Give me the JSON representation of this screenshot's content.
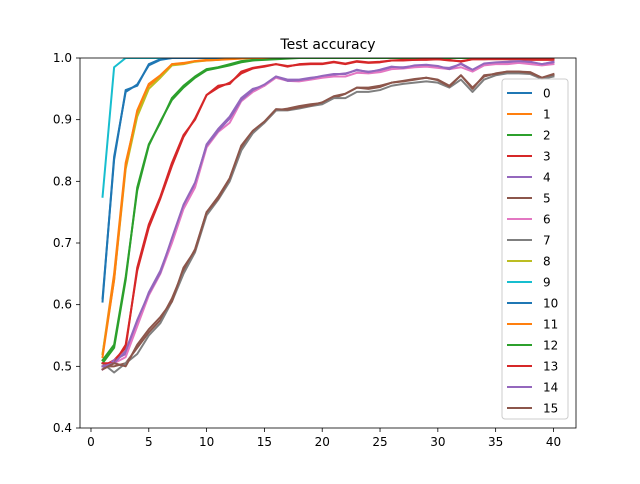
{
  "chart_data": {
    "type": "line",
    "title": "Test accuracy",
    "xlabel": "",
    "ylabel": "",
    "xlim": [
      -0.95,
      41.95
    ],
    "ylim": [
      0.4,
      1.0
    ],
    "xticks": [
      0,
      5,
      10,
      15,
      20,
      25,
      30,
      35,
      40
    ],
    "xtick_labels": [
      "0",
      "5",
      "10",
      "15",
      "20",
      "25",
      "30",
      "35",
      "40"
    ],
    "yticks": [
      0.4,
      0.5,
      0.6,
      0.7,
      0.8,
      0.9,
      1.0
    ],
    "ytick_labels": [
      "0.4",
      "0.5",
      "0.6",
      "0.7",
      "0.8",
      "0.9",
      "1.0"
    ],
    "grid": false,
    "legend_position": "right",
    "x": [
      1,
      2,
      3,
      4,
      5,
      6,
      7,
      8,
      9,
      10,
      11,
      12,
      13,
      14,
      15,
      16,
      17,
      18,
      19,
      20,
      21,
      22,
      23,
      24,
      25,
      26,
      27,
      28,
      29,
      30,
      31,
      32,
      33,
      34,
      35,
      36,
      37,
      38,
      39,
      40
    ],
    "series": [
      {
        "name": "0",
        "color": "#1f77b4",
        "values": [
          0.61,
          0.835,
          0.948,
          0.955,
          0.99,
          0.998,
          1.0,
          1.0,
          1.0,
          1.0,
          1.0,
          1.0,
          1.0,
          1.0,
          1.0,
          1.0,
          1.0,
          1.0,
          1.0,
          1.0,
          1.0,
          1.0,
          1.0,
          1.0,
          1.0,
          1.0,
          1.0,
          1.0,
          1.0,
          1.0,
          1.0,
          1.0,
          1.0,
          1.0,
          1.0,
          1.0,
          1.0,
          1.0,
          1.0,
          1.0
        ]
      },
      {
        "name": "1",
        "color": "#ff7f0e",
        "values": [
          0.52,
          0.65,
          0.83,
          0.91,
          0.955,
          0.97,
          0.99,
          0.992,
          0.995,
          0.997,
          0.998,
          0.999,
          1.0,
          1.0,
          1.0,
          1.0,
          1.0,
          1.0,
          1.0,
          1.0,
          1.0,
          1.0,
          1.0,
          1.0,
          1.0,
          1.0,
          1.0,
          1.0,
          1.0,
          1.0,
          1.0,
          1.0,
          1.0,
          1.0,
          1.0,
          1.0,
          1.0,
          1.0,
          1.0,
          1.0
        ]
      },
      {
        "name": "2",
        "color": "#2ca02c",
        "values": [
          0.505,
          0.53,
          0.64,
          0.79,
          0.86,
          0.895,
          0.935,
          0.955,
          0.97,
          0.982,
          0.985,
          0.99,
          0.995,
          0.997,
          0.998,
          0.999,
          1.0,
          1.0,
          1.0,
          1.0,
          1.0,
          1.0,
          1.0,
          1.0,
          1.0,
          1.0,
          1.0,
          1.0,
          1.0,
          1.0,
          1.0,
          1.0,
          1.0,
          1.0,
          1.0,
          1.0,
          1.0,
          1.0,
          1.0,
          1.0
        ]
      },
      {
        "name": "3",
        "color": "#d62728",
        "values": [
          0.5,
          0.51,
          0.53,
          0.66,
          0.73,
          0.775,
          0.83,
          0.875,
          0.9,
          0.94,
          0.952,
          0.96,
          0.975,
          0.983,
          0.986,
          0.99,
          0.987,
          0.989,
          0.99,
          0.99,
          0.993,
          0.99,
          0.994,
          0.992,
          0.993,
          0.996,
          0.996,
          0.997,
          0.997,
          0.998,
          0.997,
          0.994,
          0.998,
          0.998,
          0.998,
          0.998,
          0.998,
          0.997,
          0.997,
          0.997
        ]
      },
      {
        "name": "4",
        "color": "#9467bd",
        "values": [
          0.495,
          0.51,
          0.52,
          0.57,
          0.62,
          0.655,
          0.705,
          0.76,
          0.795,
          0.86,
          0.885,
          0.905,
          0.935,
          0.95,
          0.955,
          0.97,
          0.965,
          0.965,
          0.968,
          0.97,
          0.973,
          0.975,
          0.98,
          0.978,
          0.98,
          0.985,
          0.985,
          0.987,
          0.988,
          0.985,
          0.984,
          0.99,
          0.98,
          0.99,
          0.992,
          0.993,
          0.994,
          0.993,
          0.99,
          0.994
        ]
      },
      {
        "name": "5",
        "color": "#8c564b",
        "values": [
          0.5,
          0.5,
          0.505,
          0.53,
          0.555,
          0.575,
          0.61,
          0.655,
          0.69,
          0.75,
          0.775,
          0.805,
          0.855,
          0.88,
          0.895,
          0.915,
          0.918,
          0.922,
          0.925,
          0.927,
          0.935,
          0.942,
          0.952,
          0.952,
          0.955,
          0.96,
          0.962,
          0.965,
          0.968,
          0.965,
          0.955,
          0.972,
          0.952,
          0.97,
          0.975,
          0.978,
          0.978,
          0.977,
          0.968,
          0.972
        ]
      },
      {
        "name": "6",
        "color": "#e377c2",
        "values": [
          0.495,
          0.505,
          0.515,
          0.565,
          0.615,
          0.65,
          0.7,
          0.755,
          0.79,
          0.855,
          0.88,
          0.895,
          0.93,
          0.945,
          0.955,
          0.968,
          0.963,
          0.962,
          0.965,
          0.968,
          0.97,
          0.97,
          0.976,
          0.975,
          0.977,
          0.982,
          0.983,
          0.985,
          0.986,
          0.984,
          0.982,
          0.985,
          0.978,
          0.988,
          0.99,
          0.99,
          0.992,
          0.99,
          0.988,
          0.99
        ]
      },
      {
        "name": "7",
        "color": "#7f7f7f",
        "values": [
          0.505,
          0.49,
          0.505,
          0.52,
          0.55,
          0.57,
          0.605,
          0.65,
          0.685,
          0.745,
          0.77,
          0.8,
          0.85,
          0.878,
          0.895,
          0.915,
          0.915,
          0.918,
          0.922,
          0.925,
          0.935,
          0.935,
          0.945,
          0.945,
          0.948,
          0.955,
          0.958,
          0.96,
          0.962,
          0.96,
          0.952,
          0.965,
          0.945,
          0.965,
          0.972,
          0.975,
          0.975,
          0.974,
          0.966,
          0.97
        ]
      },
      {
        "name": "8",
        "color": "#bcbd22",
        "values": [
          0.52,
          0.64,
          0.82,
          0.905,
          0.95,
          0.968,
          0.988,
          0.99,
          0.994,
          0.996,
          0.997,
          0.999,
          1.0,
          1.0,
          1.0,
          1.0,
          1.0,
          1.0,
          1.0,
          1.0,
          1.0,
          1.0,
          1.0,
          1.0,
          1.0,
          1.0,
          1.0,
          1.0,
          1.0,
          1.0,
          1.0,
          1.0,
          1.0,
          1.0,
          1.0,
          1.0,
          1.0,
          1.0,
          1.0,
          1.0
        ]
      },
      {
        "name": "9",
        "color": "#17becf",
        "values": [
          0.775,
          0.985,
          1.0,
          1.0,
          1.0,
          1.0,
          1.0,
          1.0,
          1.0,
          1.0,
          1.0,
          1.0,
          1.0,
          1.0,
          1.0,
          1.0,
          1.0,
          1.0,
          1.0,
          1.0,
          1.0,
          1.0,
          1.0,
          1.0,
          1.0,
          1.0,
          1.0,
          1.0,
          1.0,
          1.0,
          1.0,
          1.0,
          1.0,
          1.0,
          1.0,
          1.0,
          1.0,
          1.0,
          1.0,
          1.0
        ]
      },
      {
        "name": "10",
        "color": "#1f77b4",
        "values": [
          0.605,
          0.84,
          0.945,
          0.957,
          0.988,
          0.997,
          1.0,
          1.0,
          1.0,
          1.0,
          1.0,
          1.0,
          1.0,
          1.0,
          1.0,
          1.0,
          1.0,
          1.0,
          1.0,
          1.0,
          1.0,
          1.0,
          1.0,
          1.0,
          1.0,
          1.0,
          1.0,
          1.0,
          1.0,
          1.0,
          1.0,
          1.0,
          1.0,
          1.0,
          1.0,
          1.0,
          1.0,
          1.0,
          1.0,
          1.0
        ]
      },
      {
        "name": "11",
        "color": "#ff7f0e",
        "values": [
          0.515,
          0.64,
          0.825,
          0.915,
          0.958,
          0.972,
          0.99,
          0.991,
          0.995,
          0.996,
          0.997,
          0.998,
          0.999,
          1.0,
          1.0,
          1.0,
          1.0,
          1.0,
          1.0,
          1.0,
          1.0,
          1.0,
          1.0,
          1.0,
          1.0,
          1.0,
          1.0,
          1.0,
          1.0,
          1.0,
          1.0,
          1.0,
          1.0,
          1.0,
          1.0,
          1.0,
          1.0,
          1.0,
          1.0,
          1.0
        ]
      },
      {
        "name": "12",
        "color": "#2ca02c",
        "values": [
          0.51,
          0.535,
          0.645,
          0.785,
          0.858,
          0.897,
          0.932,
          0.952,
          0.968,
          0.98,
          0.984,
          0.988,
          0.993,
          0.996,
          0.997,
          0.998,
          0.999,
          1.0,
          1.0,
          1.0,
          1.0,
          1.0,
          1.0,
          1.0,
          1.0,
          1.0,
          1.0,
          1.0,
          1.0,
          1.0,
          1.0,
          1.0,
          1.0,
          1.0,
          1.0,
          1.0,
          1.0,
          1.0,
          1.0,
          1.0
        ]
      },
      {
        "name": "13",
        "color": "#d62728",
        "values": [
          0.505,
          0.505,
          0.535,
          0.655,
          0.725,
          0.772,
          0.825,
          0.872,
          0.902,
          0.94,
          0.955,
          0.958,
          0.978,
          0.984,
          0.987,
          0.99,
          0.986,
          0.99,
          0.991,
          0.991,
          0.994,
          0.991,
          0.995,
          0.993,
          0.994,
          0.996,
          0.997,
          0.997,
          0.998,
          0.998,
          0.996,
          0.995,
          0.998,
          0.998,
          0.999,
          0.999,
          0.999,
          0.998,
          0.998,
          0.998
        ]
      },
      {
        "name": "14",
        "color": "#9467bd",
        "values": [
          0.5,
          0.505,
          0.525,
          0.575,
          0.618,
          0.652,
          0.708,
          0.762,
          0.798,
          0.858,
          0.882,
          0.902,
          0.932,
          0.948,
          0.957,
          0.97,
          0.963,
          0.964,
          0.967,
          0.971,
          0.974,
          0.974,
          0.981,
          0.977,
          0.981,
          0.986,
          0.984,
          0.988,
          0.989,
          0.987,
          0.982,
          0.991,
          0.981,
          0.991,
          0.993,
          0.994,
          0.995,
          0.994,
          0.99,
          0.993
        ]
      },
      {
        "name": "15",
        "color": "#8c564b",
        "values": [
          0.495,
          0.505,
          0.5,
          0.535,
          0.56,
          0.58,
          0.605,
          0.66,
          0.688,
          0.75,
          0.772,
          0.805,
          0.858,
          0.882,
          0.897,
          0.917,
          0.916,
          0.92,
          0.923,
          0.928,
          0.938,
          0.942,
          0.952,
          0.95,
          0.953,
          0.96,
          0.963,
          0.966,
          0.968,
          0.964,
          0.954,
          0.972,
          0.95,
          0.972,
          0.974,
          0.978,
          0.978,
          0.976,
          0.968,
          0.974
        ]
      }
    ]
  }
}
